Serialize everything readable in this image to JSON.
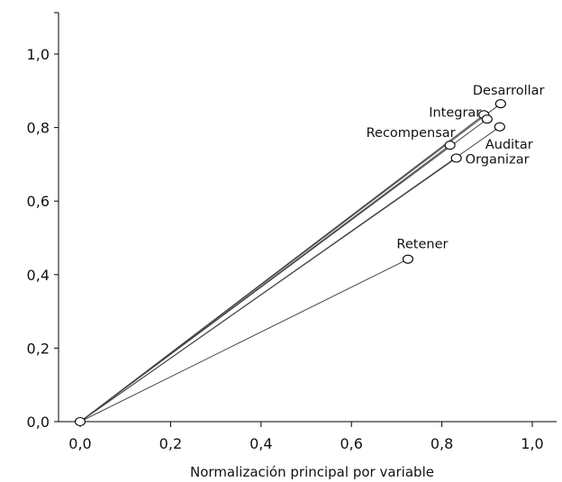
{
  "chart_data": {
    "type": "scatter",
    "title": "",
    "xlabel": "Normalización principal por variable",
    "ylabel": "",
    "xlim": [
      -0.05,
      1.05
    ],
    "ylim": [
      0.0,
      1.1
    ],
    "xticks": [
      "0,0",
      "0,2",
      "0,4",
      "0,6",
      "0,8",
      "1,0"
    ],
    "xtick_values": [
      0.0,
      0.2,
      0.4,
      0.6,
      0.8,
      1.0
    ],
    "yticks": [
      "0,0",
      "0,2",
      "0,4",
      "0,6",
      "0,8",
      "1,0"
    ],
    "ytick_values": [
      0.0,
      0.2,
      0.4,
      0.6,
      0.8,
      1.0
    ],
    "grid": false,
    "origin_marker": true,
    "vectors_from_origin": true,
    "points": [
      {
        "label": "Desarrollar",
        "x": 0.93,
        "y": 0.865,
        "label_pos": "above-right"
      },
      {
        "label": "Integrar",
        "x": 0.893,
        "y": 0.835,
        "label_pos": "left"
      },
      {
        "label": "Recompensar",
        "x": 0.818,
        "y": 0.752,
        "label_pos": "above-left"
      },
      {
        "label": "Auditar",
        "x": 0.928,
        "y": 0.802,
        "label_pos": "below-right"
      },
      {
        "label": "Organizar",
        "x": 0.832,
        "y": 0.717,
        "label_pos": "right"
      },
      {
        "label": "Retener",
        "x": 0.725,
        "y": 0.442,
        "label_pos": "above"
      }
    ],
    "extra_markers": [
      {
        "x": 0.9,
        "y": 0.823
      }
    ]
  }
}
